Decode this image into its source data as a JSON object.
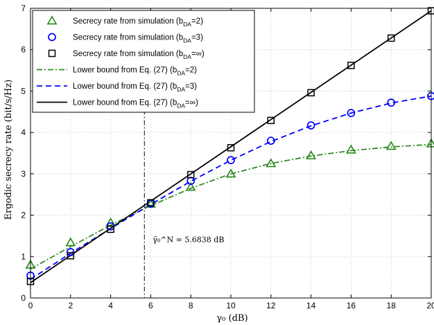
{
  "chart_data": {
    "type": "line",
    "title": "",
    "xlabel": "γ₀ (dB)",
    "ylabel": "Ergodic secrecy rate (bit/s/Hz)",
    "xlim": [
      0,
      20
    ],
    "ylim": [
      0,
      7
    ],
    "xticks": [
      0,
      2,
      4,
      6,
      8,
      10,
      12,
      14,
      16,
      18,
      20
    ],
    "yticks": [
      0,
      1,
      2,
      3,
      4,
      5,
      6,
      7
    ],
    "grid": true,
    "legend_position": "top-left",
    "series": [
      {
        "name": "Secrecy rate from simulation (b_DA=2)",
        "legend_main": "Secrecy rate from simulation (b",
        "legend_sub": "DA",
        "legend_tail": "=2)",
        "style": "marker",
        "marker": "triangle",
        "color": "#2e8b22",
        "x": [
          0,
          2,
          4,
          6,
          8,
          10,
          12,
          14,
          16,
          18,
          20
        ],
        "y": [
          0.8,
          1.34,
          1.82,
          2.27,
          2.68,
          3.0,
          3.25,
          3.44,
          3.58,
          3.67,
          3.73
        ]
      },
      {
        "name": "Secrecy rate from simulation (b_DA=3)",
        "legend_main": "Secrecy rate from simulation (b",
        "legend_sub": "DA",
        "legend_tail": "=3)",
        "style": "marker",
        "marker": "circle",
        "color": "#0000ff",
        "x": [
          0,
          2,
          4,
          6,
          8,
          10,
          12,
          14,
          16,
          18,
          20
        ],
        "y": [
          0.54,
          1.11,
          1.73,
          2.28,
          2.83,
          3.33,
          3.8,
          4.17,
          4.47,
          4.72,
          4.88
        ]
      },
      {
        "name": "Secrecy rate from simulation (b_DA=∞)",
        "legend_main": "Secrecy rate from simulation (b",
        "legend_sub": "DA",
        "legend_tail": "=∞)",
        "style": "marker",
        "marker": "square",
        "color": "#000000",
        "x": [
          0,
          2,
          4,
          6,
          8,
          10,
          12,
          14,
          16,
          18,
          20
        ],
        "y": [
          0.4,
          1.02,
          1.66,
          2.3,
          2.98,
          3.63,
          4.29,
          4.96,
          5.62,
          6.28,
          6.94
        ]
      },
      {
        "name": "Lower bound from Eq. (27) (b_DA=2)",
        "legend_main": "Lower bound from Eq. (27) (b",
        "legend_sub": "DA",
        "legend_tail": "=2)",
        "style": "line",
        "dash": "8,3,2,3",
        "color": "#2e8b22",
        "x": [
          0,
          2,
          4,
          6,
          8,
          10,
          12,
          14,
          16,
          18,
          20
        ],
        "y": [
          0.7,
          1.24,
          1.76,
          2.23,
          2.65,
          3.0,
          3.25,
          3.43,
          3.56,
          3.65,
          3.71
        ]
      },
      {
        "name": "Lower bound from Eq. (27) (b_DA=3)",
        "legend_main": "Lower bound from Eq. (27) (b",
        "legend_sub": "DA",
        "legend_tail": "=3)",
        "style": "line",
        "dash": "8,5",
        "color": "#0000ff",
        "x": [
          0,
          2,
          4,
          6,
          8,
          10,
          12,
          14,
          16,
          18,
          20
        ],
        "y": [
          0.45,
          1.08,
          1.68,
          2.26,
          2.82,
          3.33,
          3.78,
          4.16,
          4.47,
          4.71,
          4.88
        ]
      },
      {
        "name": "Lower bound from Eq. (27) (b_DA=∞)",
        "legend_main": "Lower bound from Eq. (27) (b",
        "legend_sub": "DA",
        "legend_tail": "=∞)",
        "style": "line",
        "dash": "",
        "color": "#000000",
        "x": [
          0,
          20
        ],
        "y": [
          0.37,
          6.94
        ]
      }
    ],
    "vline": {
      "x": 5.6838
    },
    "annotation": {
      "text": "γ̄₀^N = 5.6838 dB",
      "x": 6.1,
      "y": 1.35
    }
  }
}
